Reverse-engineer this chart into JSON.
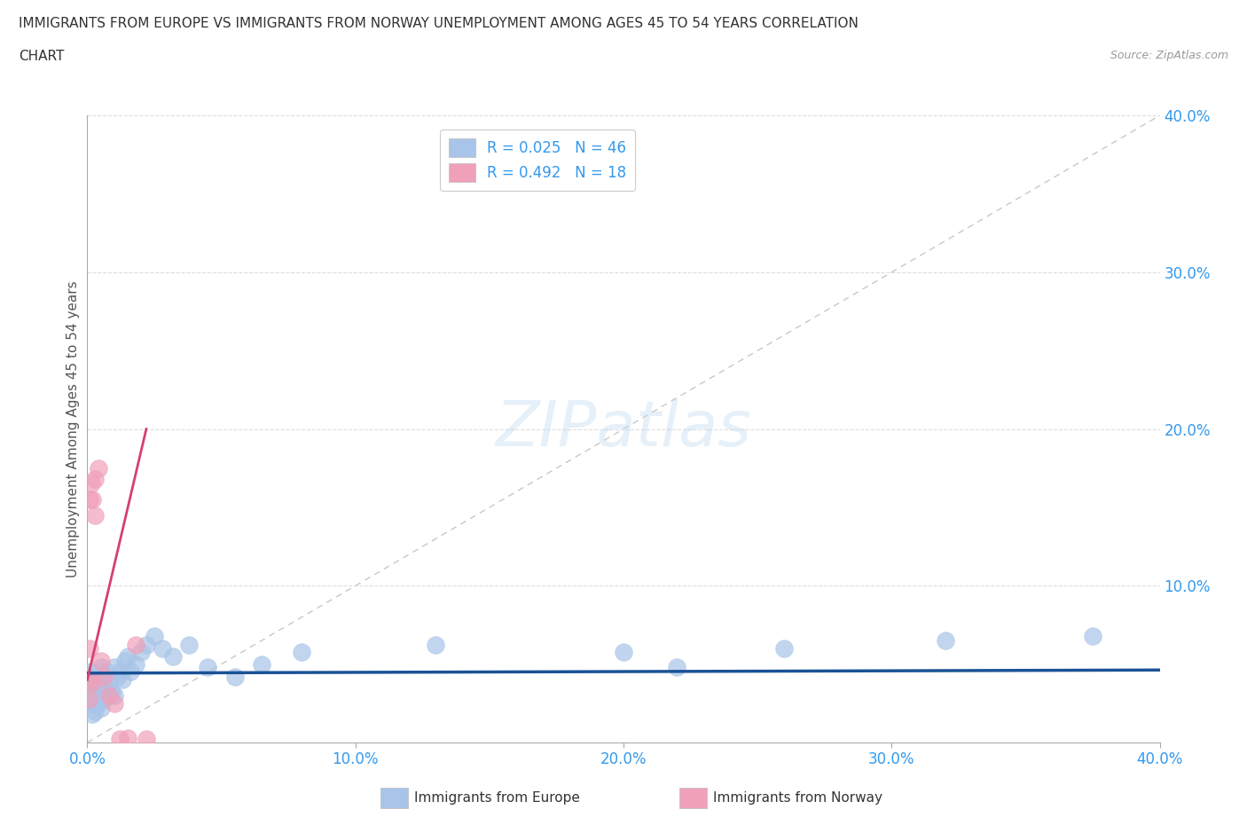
{
  "title_line1": "IMMIGRANTS FROM EUROPE VS IMMIGRANTS FROM NORWAY UNEMPLOYMENT AMONG AGES 45 TO 54 YEARS CORRELATION",
  "title_line2": "CHART",
  "source_text": "Source: ZipAtlas.com",
  "ylabel": "Unemployment Among Ages 45 to 54 years",
  "europe_label": "Immigrants from Europe",
  "norway_label": "Immigrants from Norway",
  "europe_R": "0.025",
  "europe_N": "46",
  "norway_R": "0.492",
  "norway_N": "18",
  "europe_color": "#A8C4E8",
  "norway_color": "#F0A0B8",
  "europe_line_color": "#1A5296",
  "norway_line_color": "#D44070",
  "diag_line_color": "#C8C8C8",
  "watermark_color": "#B8D4F0",
  "xlim": [
    0.0,
    0.4
  ],
  "ylim": [
    0.0,
    0.4
  ],
  "xticks": [
    0.0,
    0.1,
    0.2,
    0.3,
    0.4
  ],
  "yticks": [
    0.1,
    0.2,
    0.3,
    0.4
  ],
  "europe_x": [
    0.0005,
    0.001,
    0.001,
    0.0015,
    0.002,
    0.002,
    0.002,
    0.003,
    0.003,
    0.003,
    0.004,
    0.004,
    0.005,
    0.005,
    0.005,
    0.006,
    0.006,
    0.007,
    0.007,
    0.008,
    0.009,
    0.01,
    0.01,
    0.011,
    0.012,
    0.013,
    0.014,
    0.015,
    0.016,
    0.018,
    0.02,
    0.022,
    0.025,
    0.028,
    0.032,
    0.038,
    0.045,
    0.055,
    0.065,
    0.08,
    0.13,
    0.2,
    0.22,
    0.26,
    0.32,
    0.375
  ],
  "europe_y": [
    0.038,
    0.042,
    0.03,
    0.045,
    0.038,
    0.025,
    0.018,
    0.042,
    0.032,
    0.02,
    0.038,
    0.025,
    0.048,
    0.035,
    0.022,
    0.042,
    0.028,
    0.045,
    0.032,
    0.038,
    0.032,
    0.048,
    0.03,
    0.042,
    0.045,
    0.04,
    0.052,
    0.055,
    0.045,
    0.05,
    0.058,
    0.062,
    0.068,
    0.06,
    0.055,
    0.062,
    0.048,
    0.042,
    0.05,
    0.058,
    0.062,
    0.058,
    0.048,
    0.06,
    0.065,
    0.068
  ],
  "norway_x": [
    0.0005,
    0.0005,
    0.001,
    0.001,
    0.0015,
    0.002,
    0.002,
    0.003,
    0.003,
    0.004,
    0.005,
    0.006,
    0.008,
    0.01,
    0.012,
    0.015,
    0.018,
    0.022
  ],
  "norway_y": [
    0.04,
    0.028,
    0.155,
    0.06,
    0.165,
    0.155,
    0.038,
    0.168,
    0.145,
    0.175,
    0.052,
    0.042,
    0.03,
    0.025,
    0.002,
    0.003,
    0.062,
    0.002
  ],
  "background_color": "#FFFFFF",
  "grid_color": "#DDDDDD"
}
